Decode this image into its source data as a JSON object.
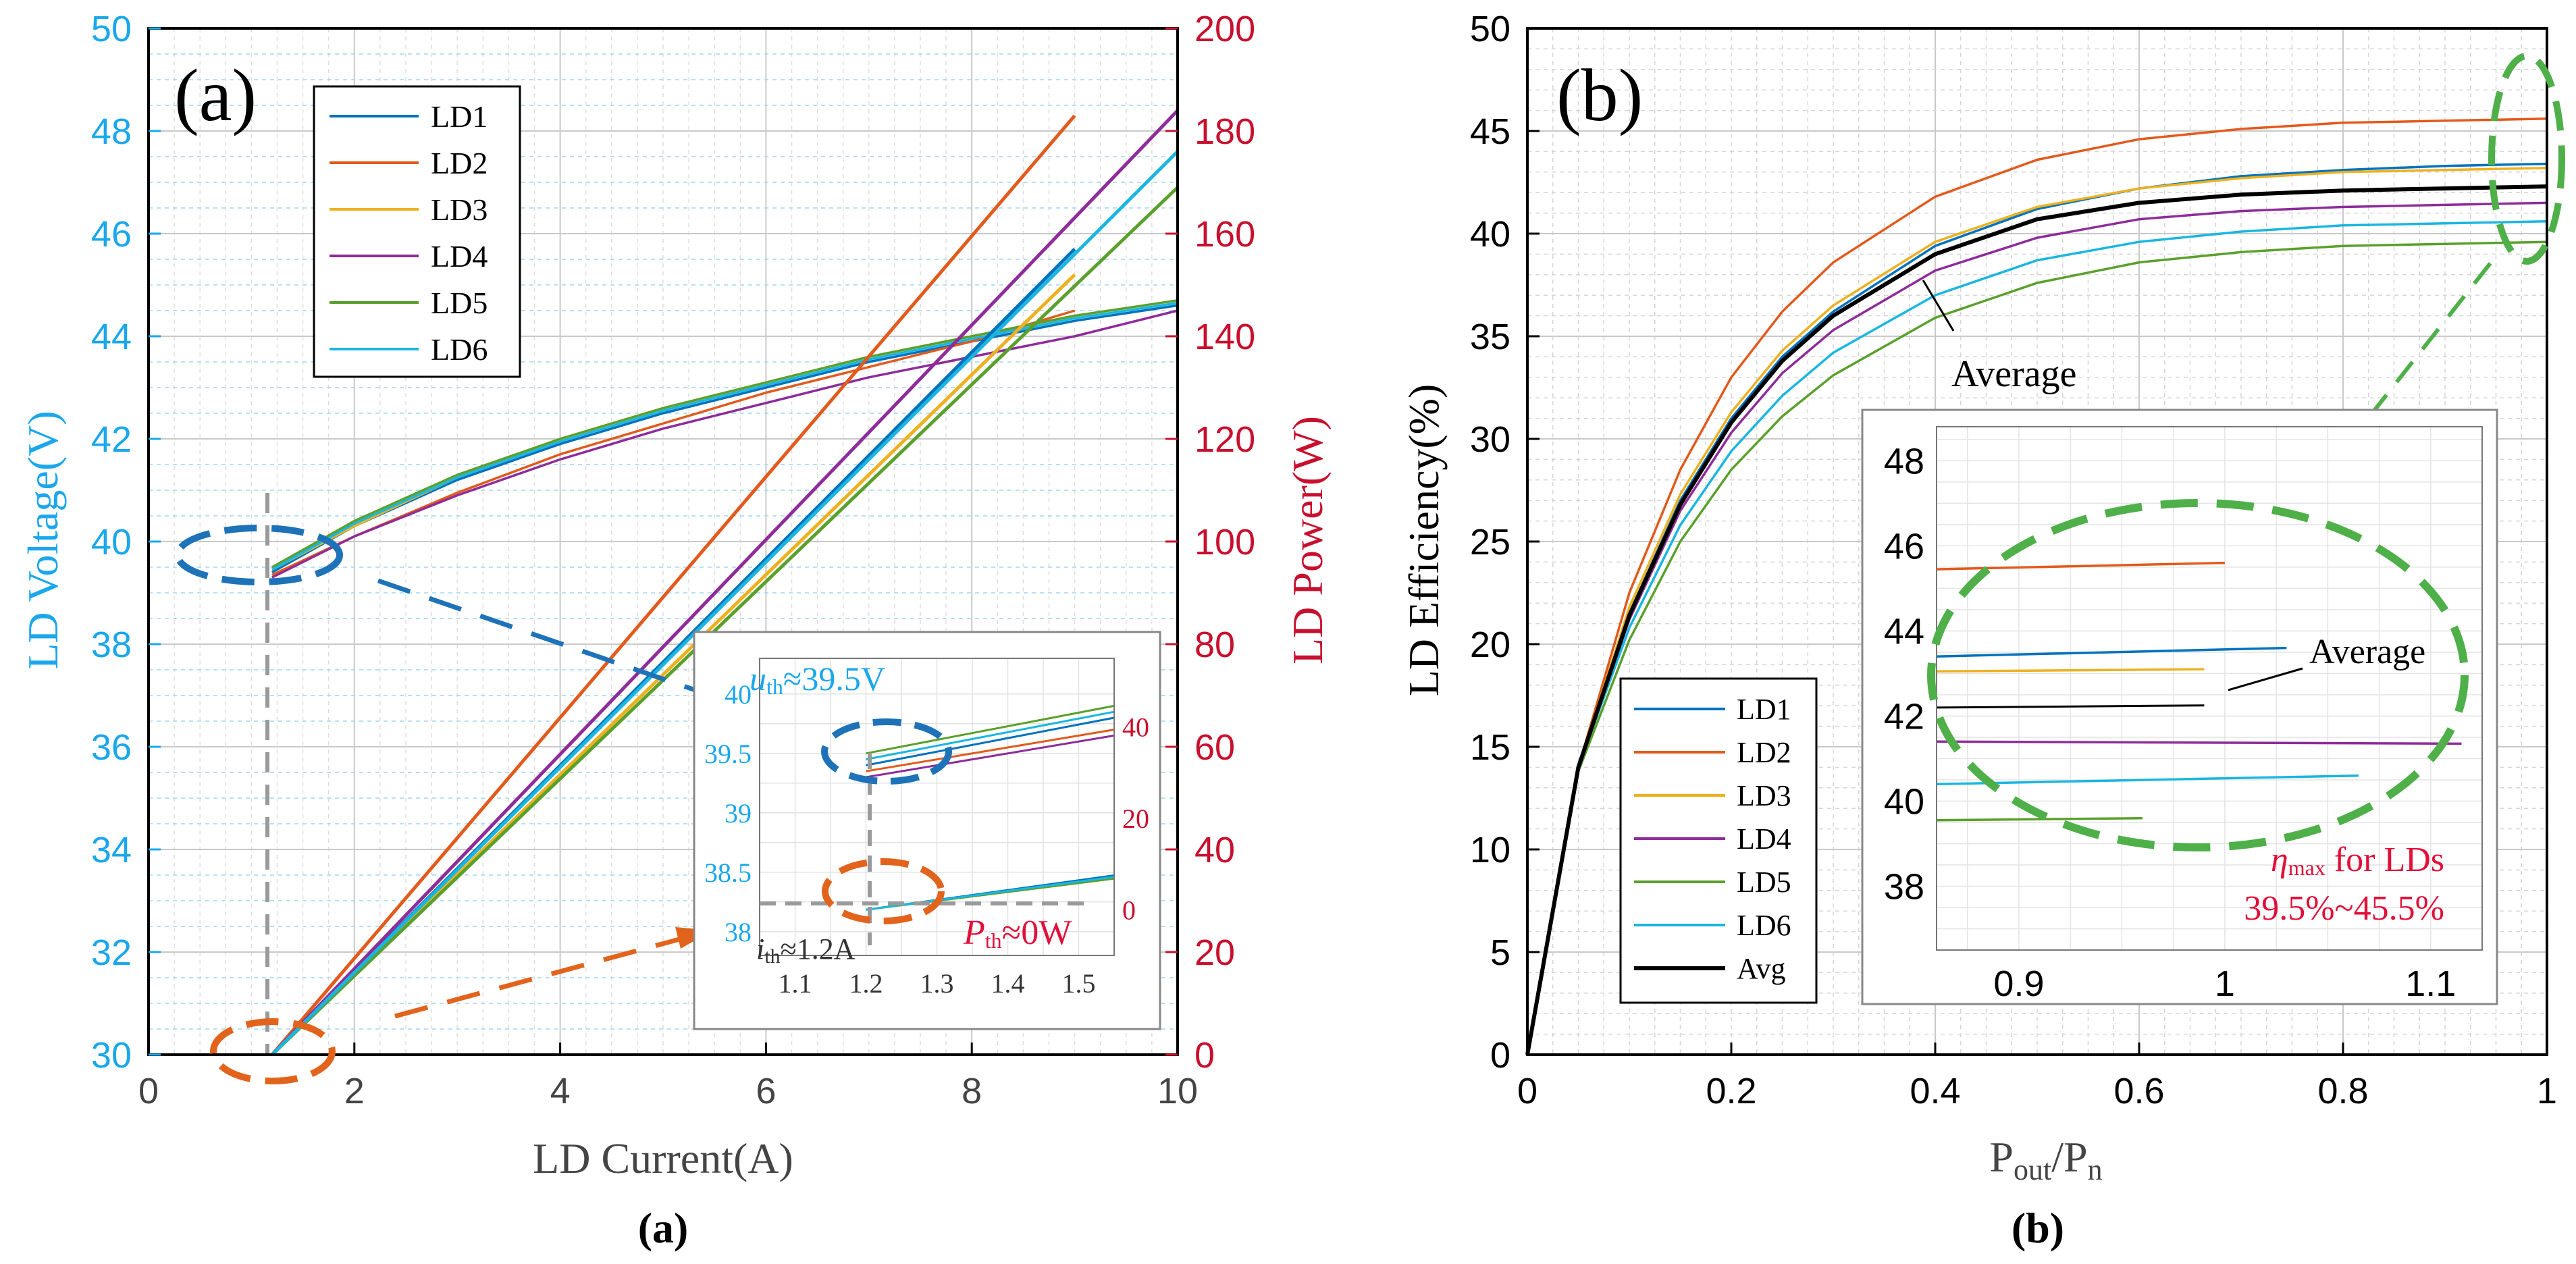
{
  "colors": {
    "voltage_axis": "#1aa7ec",
    "power_axis": "#c8102e",
    "LD1": "#0072bd",
    "LD2": "#e25a1c",
    "LD3": "#edb120",
    "LD4": "#8e2c9a",
    "LD5": "#5aa02c",
    "LD6": "#1ab6e0",
    "Avg": "#000000",
    "blue_marker": "#1e73b8",
    "orange_marker": "#e2641c",
    "green_marker": "#4fb04a",
    "grey_guide": "#9a9a9a"
  },
  "caption_a": "(a)",
  "caption_b": "(b)",
  "chart_data": [
    {
      "type": "line",
      "panel_label": "(a)",
      "xlabel": "LD Current(A)",
      "ylabel_left": "LD Voltage(V)",
      "ylabel_right": "LD Power(W)",
      "xlim": [
        0,
        10
      ],
      "ylim_left": [
        30,
        50
      ],
      "ylim_right": [
        0,
        200
      ],
      "xticks": [
        0,
        2,
        4,
        6,
        8,
        10
      ],
      "yticks_left": [
        30,
        32,
        34,
        36,
        38,
        40,
        42,
        44,
        46,
        48,
        50
      ],
      "yticks_right": [
        0,
        20,
        40,
        60,
        80,
        100,
        120,
        140,
        160,
        180,
        200
      ],
      "grid": true,
      "legend_position": "top-left",
      "series": [
        {
          "name": "LD1",
          "axis": "voltage",
          "x": [
            1.2,
            2,
            3,
            4,
            5,
            6,
            7,
            8,
            9,
            10
          ],
          "y": [
            39.4,
            40.3,
            41.2,
            41.9,
            42.5,
            43.0,
            43.5,
            43.9,
            44.3,
            44.6
          ]
        },
        {
          "name": "LD2",
          "axis": "voltage",
          "x": [
            1.2,
            2,
            3,
            4,
            5,
            6,
            7,
            8,
            9
          ],
          "y": [
            39.35,
            40.1,
            40.95,
            41.7,
            42.3,
            42.9,
            43.4,
            43.9,
            44.5
          ]
        },
        {
          "name": "LD3",
          "axis": "voltage",
          "x": [
            1.2,
            2,
            3,
            4,
            5,
            6,
            7,
            8,
            9
          ],
          "y": [
            39.45,
            40.3,
            41.25,
            42.0,
            42.6,
            43.1,
            43.6,
            44.0,
            44.4
          ]
        },
        {
          "name": "LD4",
          "axis": "voltage",
          "x": [
            1.2,
            2,
            3,
            4,
            5,
            6,
            7,
            8,
            9,
            10
          ],
          "y": [
            39.3,
            40.1,
            40.9,
            41.6,
            42.2,
            42.7,
            43.2,
            43.6,
            44.0,
            44.5
          ]
        },
        {
          "name": "LD5",
          "axis": "voltage",
          "x": [
            1.2,
            2,
            3,
            4,
            5,
            6,
            7,
            8,
            9,
            10
          ],
          "y": [
            39.5,
            40.4,
            41.3,
            42.0,
            42.6,
            43.1,
            43.6,
            44.0,
            44.4,
            44.7
          ]
        },
        {
          "name": "LD6",
          "axis": "voltage",
          "x": [
            1.2,
            2,
            3,
            4,
            5,
            6,
            7,
            8,
            9,
            10
          ],
          "y": [
            39.45,
            40.35,
            41.25,
            41.95,
            42.55,
            43.05,
            43.55,
            43.95,
            44.35,
            44.65
          ]
        },
        {
          "name": "LD1",
          "axis": "power",
          "x": [
            1.2,
            9
          ],
          "y": [
            0,
            157
          ]
        },
        {
          "name": "LD2",
          "axis": "power",
          "x": [
            1.2,
            9
          ],
          "y": [
            0,
            183
          ]
        },
        {
          "name": "LD3",
          "axis": "power",
          "x": [
            1.2,
            9
          ],
          "y": [
            0,
            152
          ]
        },
        {
          "name": "LD4",
          "axis": "power",
          "x": [
            1.2,
            10
          ],
          "y": [
            0,
            184
          ]
        },
        {
          "name": "LD5",
          "axis": "power",
          "x": [
            1.2,
            10
          ],
          "y": [
            0,
            169
          ]
        },
        {
          "name": "LD6",
          "axis": "power",
          "x": [
            1.2,
            10
          ],
          "y": [
            0,
            176
          ]
        }
      ],
      "inset": {
        "xlim": [
          1.05,
          1.55
        ],
        "ylim_left": [
          37.8,
          40.3
        ],
        "ylim_right": [
          -10,
          55
        ],
        "xticks": [
          1.1,
          1.2,
          1.3,
          1.4,
          1.5
        ],
        "yticks_left": [
          38,
          38.5,
          39,
          39.5,
          40
        ],
        "yticks_right": [
          0,
          20,
          40
        ],
        "annotation_u_main": "u",
        "annotation_u_sub": "th",
        "annotation_u_value": "≈39.5V",
        "annotation_i_main": "i",
        "annotation_i_sub": "th",
        "annotation_i_value": "≈1.2A",
        "annotation_p_main": "P",
        "annotation_p_sub": "th",
        "annotation_p_value": "≈0W",
        "voltage_lines": [
          {
            "name": "LD1",
            "x": [
              1.2,
              1.55
            ],
            "y": [
              39.4,
              39.8
            ]
          },
          {
            "name": "LD2",
            "x": [
              1.2,
              1.55
            ],
            "y": [
              39.35,
              39.7
            ]
          },
          {
            "name": "LD4",
            "x": [
              1.2,
              1.55
            ],
            "y": [
              39.3,
              39.65
            ]
          },
          {
            "name": "LD5",
            "x": [
              1.2,
              1.55
            ],
            "y": [
              39.5,
              39.9
            ]
          },
          {
            "name": "LD6",
            "x": [
              1.2,
              1.55
            ],
            "y": [
              39.45,
              39.85
            ]
          }
        ],
        "power_lines": [
          {
            "name": "LD1",
            "x": [
              1.2,
              1.55
            ],
            "y": [
              0,
              7.5
            ]
          },
          {
            "name": "LD5",
            "x": [
              1.2,
              1.55
            ],
            "y": [
              0,
              6.8
            ]
          },
          {
            "name": "LD6",
            "x": [
              1.2,
              1.55
            ],
            "y": [
              0,
              7.2
            ]
          }
        ]
      }
    },
    {
      "type": "line",
      "panel_label": "(b)",
      "xlabel_main": "P",
      "xlabel_sub1": "out",
      "xlabel_mid": "/P",
      "xlabel_sub2": "n",
      "ylabel": "LD Efficiency(%)",
      "xlim": [
        0,
        1
      ],
      "ylim": [
        0,
        50
      ],
      "xticks": [
        0,
        0.2,
        0.4,
        0.6,
        0.8,
        1
      ],
      "yticks": [
        0,
        5,
        10,
        15,
        20,
        25,
        30,
        35,
        40,
        45,
        50
      ],
      "grid": true,
      "legend_position": "bottom-left",
      "annotation_average": "Average",
      "x": [
        0,
        0.05,
        0.1,
        0.15,
        0.2,
        0.25,
        0.3,
        0.4,
        0.5,
        0.6,
        0.7,
        0.8,
        0.9,
        1.0
      ],
      "series": [
        {
          "name": "LD1",
          "y": [
            0,
            14,
            21.5,
            27,
            31,
            34,
            36.2,
            39.4,
            41.2,
            42.2,
            42.8,
            43.1,
            43.3,
            43.4
          ]
        },
        {
          "name": "LD2",
          "y": [
            0,
            14,
            22.5,
            28.5,
            33,
            36.2,
            38.6,
            41.8,
            43.6,
            44.6,
            45.1,
            45.4,
            45.5,
            45.6
          ]
        },
        {
          "name": "LD3",
          "y": [
            0,
            14,
            21.8,
            27.3,
            31.3,
            34.3,
            36.5,
            39.6,
            41.3,
            42.2,
            42.7,
            43.0,
            43.1,
            43.2
          ]
        },
        {
          "name": "LD4",
          "y": [
            0,
            14,
            21.2,
            26.5,
            30.3,
            33.2,
            35.3,
            38.2,
            39.8,
            40.7,
            41.1,
            41.3,
            41.4,
            41.5
          ]
        },
        {
          "name": "LD5",
          "y": [
            0,
            13.8,
            20.2,
            25,
            28.5,
            31.1,
            33.1,
            35.9,
            37.6,
            38.6,
            39.1,
            39.4,
            39.5,
            39.6
          ]
        },
        {
          "name": "LD6",
          "y": [
            0,
            14,
            20.8,
            25.8,
            29.4,
            32.1,
            34.2,
            37.0,
            38.7,
            39.6,
            40.1,
            40.4,
            40.5,
            40.6
          ]
        },
        {
          "name": "Avg",
          "y": [
            0,
            14,
            21.4,
            26.8,
            30.8,
            33.8,
            36.0,
            39.0,
            40.7,
            41.5,
            41.9,
            42.1,
            42.2,
            42.3
          ]
        }
      ],
      "inset": {
        "xlim": [
          0.86,
          1.125
        ],
        "ylim": [
          36.5,
          48.8
        ],
        "xticks": [
          0.9,
          1,
          1.1
        ],
        "yticks": [
          38,
          40,
          42,
          44,
          46,
          48
        ],
        "annotation_average": "Average",
        "annotation_eta_main": "η",
        "annotation_eta_sub": "max",
        "annotation_eta_rest": " for LDs",
        "annotation_range": "39.5%~45.5%",
        "lines": [
          {
            "name": "LD2",
            "x": [
              0.86,
              1.0
            ],
            "y": [
              45.45,
              45.6
            ]
          },
          {
            "name": "LD1",
            "x": [
              0.86,
              1.03
            ],
            "y": [
              43.4,
              43.6
            ]
          },
          {
            "name": "LD3",
            "x": [
              0.86,
              0.99
            ],
            "y": [
              43.05,
              43.1
            ]
          },
          {
            "name": "Avg",
            "x": [
              0.86,
              0.99
            ],
            "y": [
              42.2,
              42.25
            ]
          },
          {
            "name": "LD4",
            "x": [
              0.86,
              1.115
            ],
            "y": [
              41.4,
              41.35
            ]
          },
          {
            "name": "LD6",
            "x": [
              0.86,
              1.065
            ],
            "y": [
              40.4,
              40.6
            ]
          },
          {
            "name": "LD5",
            "x": [
              0.86,
              0.96
            ],
            "y": [
              39.55,
              39.6
            ]
          }
        ]
      }
    }
  ]
}
